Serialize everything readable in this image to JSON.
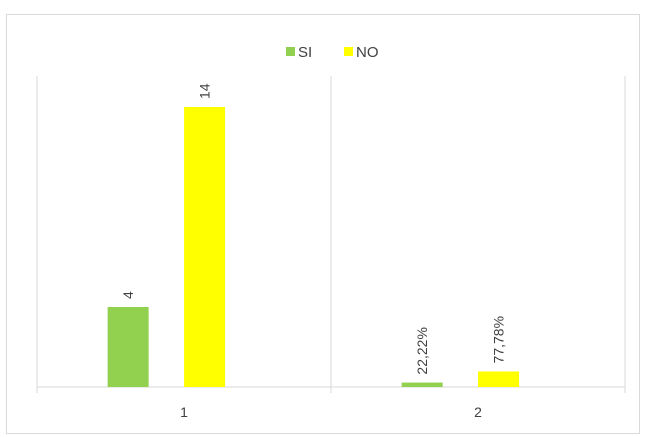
{
  "chart_data": {
    "type": "bar",
    "title": "",
    "xlabel": "",
    "ylabel": "",
    "categories": [
      "1",
      "2"
    ],
    "series": [
      {
        "name": "SI",
        "color": "#92d050",
        "values": [
          4,
          0.2222
        ],
        "labels": [
          "4",
          "22,22%"
        ]
      },
      {
        "name": "NO",
        "color": "#ffff00",
        "values": [
          14,
          0.7778
        ],
        "labels": [
          "14",
          "77,78%"
        ]
      }
    ],
    "ylim": [
      0,
      14
    ],
    "grid": false,
    "legend": "top-center"
  }
}
